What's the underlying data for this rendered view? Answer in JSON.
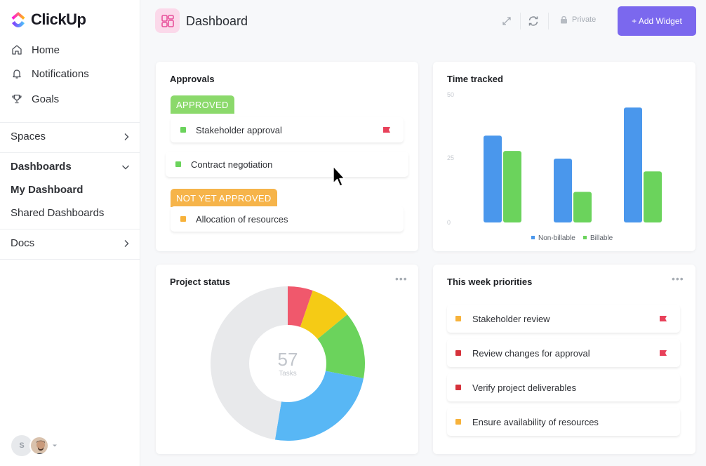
{
  "app": {
    "name": "ClickUp"
  },
  "sidebar": {
    "nav": [
      {
        "label": "Home",
        "icon": "home-icon"
      },
      {
        "label": "Notifications",
        "icon": "bell-icon"
      },
      {
        "label": "Goals",
        "icon": "trophy-icon"
      }
    ],
    "spaces": "Spaces",
    "dashboards": "Dashboards",
    "my_dashboard": "My Dashboard",
    "shared_dashboards": "Shared Dashboards",
    "docs": "Docs",
    "user_initial": "S"
  },
  "header": {
    "title": "Dashboard",
    "privacy": "Private",
    "add_widget": "+ Add Widget"
  },
  "approvals": {
    "title": "Approvals",
    "approved_label": "APPROVED",
    "not_approved_label": "NOT YET APPROVED",
    "tasks": [
      {
        "label": "Stakeholder approval",
        "color": "#6bd35c",
        "flag": true
      },
      {
        "label": "Contract negotiation",
        "color": "#6bd35c",
        "flag": false
      },
      {
        "label": "Allocation of resources",
        "color": "#f7b23b",
        "flag": false
      }
    ]
  },
  "time_tracked": {
    "title": "Time tracked",
    "ticks": [
      "50",
      "25",
      "0"
    ]
  },
  "project_status": {
    "title": "Project status",
    "total": "57",
    "unit": "Tasks"
  },
  "priorities": {
    "title": "This week priorities",
    "items": [
      {
        "label": "Stakeholder review",
        "color": "#f7b23b",
        "flag": true
      },
      {
        "label": "Review changes for approval",
        "color": "#d6323b",
        "flag": true
      },
      {
        "label": "Verify project deliverables",
        "color": "#d6323b",
        "flag": false
      },
      {
        "label": "Ensure availability of resources",
        "color": "#f7b23b",
        "flag": false
      }
    ]
  },
  "colors": {
    "accent": "#7b68ee",
    "blue": "#4a97ec",
    "green": "#6bd35c",
    "flag": "#e8415a",
    "approved": "#8bd96b",
    "pending": "#f6b44a"
  },
  "chart_data": [
    {
      "type": "bar",
      "title": "Time tracked",
      "categories": [
        "",
        "",
        ""
      ],
      "series": [
        {
          "name": "Non-billable",
          "color": "#4a97ec",
          "values": [
            34,
            25,
            45
          ]
        },
        {
          "name": "Billable",
          "color": "#6bd35c",
          "values": [
            28,
            12,
            20
          ]
        }
      ],
      "ylim": [
        0,
        50
      ],
      "yticks": [
        0,
        25,
        50
      ],
      "grid": false,
      "legend": "bottom"
    },
    {
      "type": "pie",
      "title": "Project status",
      "donut": true,
      "slices": [
        {
          "color": "#f0586c",
          "value": 3
        },
        {
          "color": "#f5cb15",
          "value": 5
        },
        {
          "color": "#6bd35c",
          "value": 8
        },
        {
          "color": "#58b7f5",
          "value": 14
        },
        {
          "color": "#e8e9eb",
          "value": 27
        }
      ]
    }
  ]
}
